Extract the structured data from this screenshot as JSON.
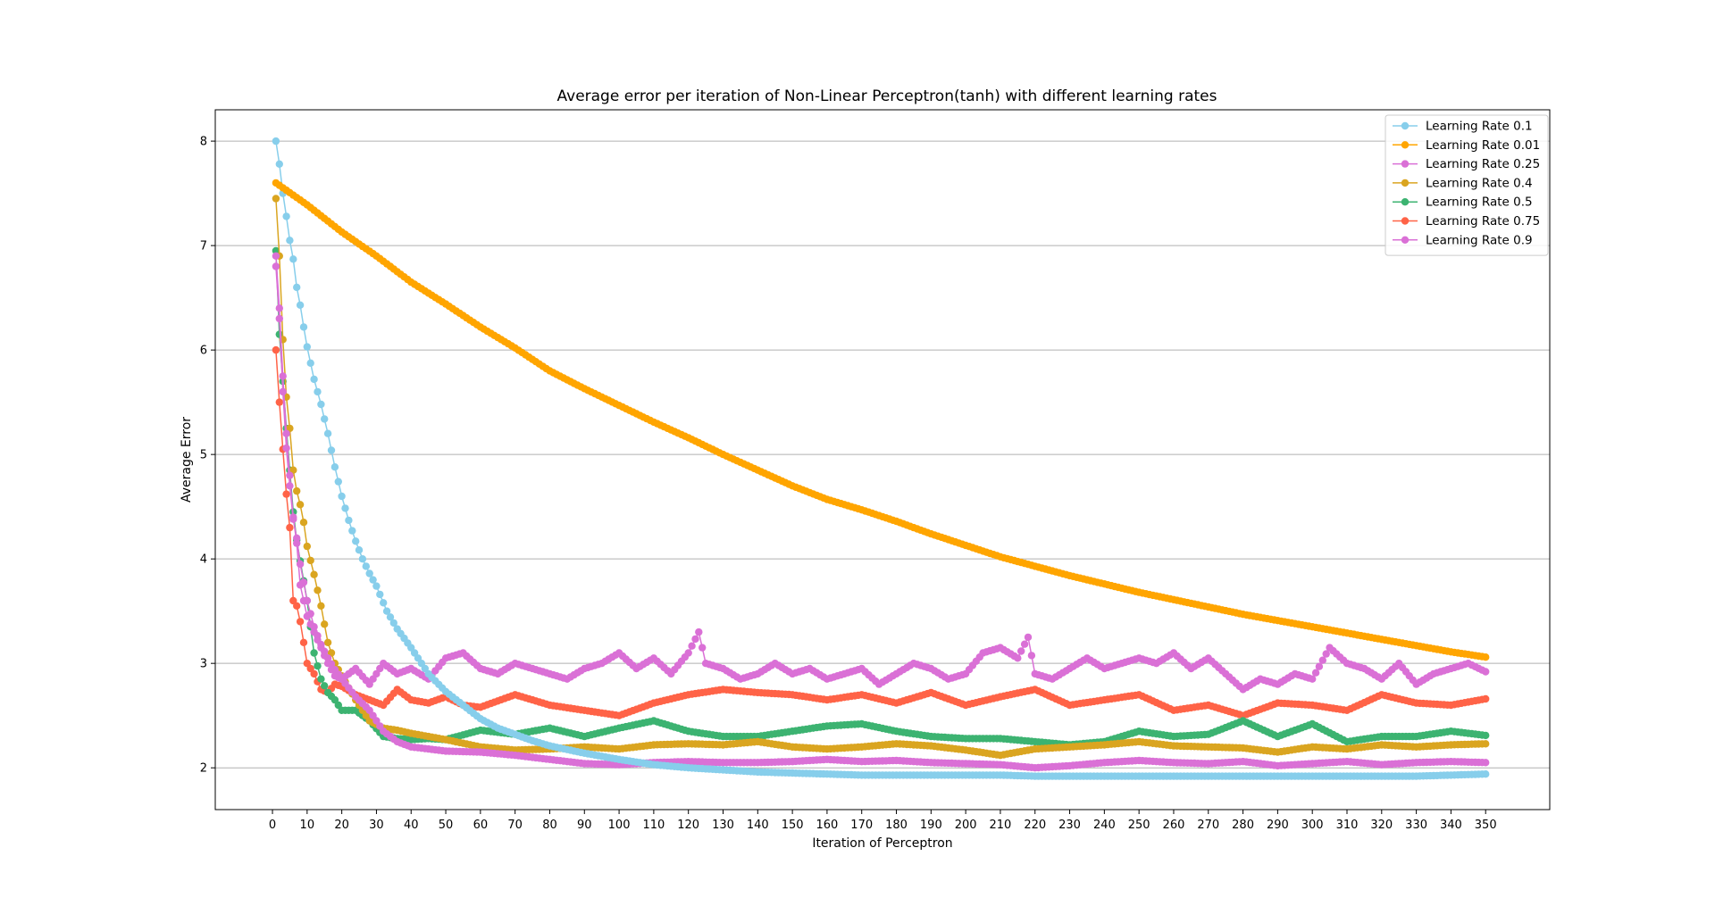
{
  "chart_data": {
    "type": "line",
    "title": "Average error per iteration of Non-Linear Perceptron(tanh) with different learning rates",
    "xlabel": "Iteration of Perceptron",
    "ylabel": "Average Error",
    "xlim": [
      -16.5,
      368.5
    ],
    "ylim": [
      1.6,
      8.3
    ],
    "x_ticks": [
      0,
      10,
      20,
      30,
      40,
      50,
      60,
      70,
      80,
      90,
      100,
      110,
      120,
      130,
      140,
      150,
      160,
      170,
      180,
      190,
      200,
      210,
      220,
      230,
      240,
      250,
      260,
      270,
      280,
      290,
      300,
      310,
      320,
      330,
      340,
      350
    ],
    "y_ticks": [
      2,
      3,
      4,
      5,
      6,
      7,
      8
    ],
    "grid": "horizontal",
    "legend_position": "top-right",
    "x_start": 1,
    "x_end": 350,
    "series": [
      {
        "name": "Learning Rate 0.1",
        "color": "#87CEEB",
        "x": [
          1,
          2,
          3,
          4,
          5,
          6,
          7,
          8,
          9,
          10,
          12,
          14,
          16,
          18,
          20,
          22,
          24,
          26,
          28,
          30,
          33,
          36,
          40,
          45,
          50,
          55,
          60,
          65,
          70,
          75,
          80,
          90,
          100,
          110,
          120,
          130,
          140,
          150,
          160,
          170,
          180,
          190,
          200,
          210,
          220,
          230,
          240,
          250,
          260,
          270,
          280,
          290,
          300,
          310,
          320,
          330,
          340,
          350
        ],
        "values": [
          8.0,
          7.78,
          7.5,
          7.28,
          7.05,
          6.87,
          6.6,
          6.43,
          6.22,
          6.03,
          5.72,
          5.48,
          5.2,
          4.88,
          4.6,
          4.37,
          4.17,
          4.0,
          3.86,
          3.74,
          3.5,
          3.33,
          3.15,
          2.9,
          2.73,
          2.6,
          2.47,
          2.38,
          2.32,
          2.26,
          2.21,
          2.14,
          2.08,
          2.03,
          2.0,
          1.98,
          1.96,
          1.95,
          1.94,
          1.93,
          1.93,
          1.93,
          1.93,
          1.93,
          1.92,
          1.92,
          1.92,
          1.92,
          1.92,
          1.92,
          1.92,
          1.92,
          1.92,
          1.92,
          1.92,
          1.92,
          1.93,
          1.94
        ]
      },
      {
        "name": "Learning Rate 0.01",
        "color": "#FFA500",
        "x": [
          1,
          10,
          20,
          30,
          40,
          50,
          60,
          70,
          80,
          90,
          100,
          110,
          120,
          130,
          140,
          150,
          160,
          170,
          180,
          190,
          200,
          210,
          220,
          230,
          240,
          250,
          260,
          270,
          280,
          290,
          300,
          310,
          320,
          330,
          340,
          350
        ],
        "values": [
          7.6,
          7.39,
          7.13,
          6.9,
          6.65,
          6.44,
          6.22,
          6.02,
          5.8,
          5.63,
          5.47,
          5.31,
          5.16,
          5.0,
          4.85,
          4.7,
          4.57,
          4.47,
          4.36,
          4.24,
          4.13,
          4.02,
          3.93,
          3.84,
          3.76,
          3.68,
          3.61,
          3.54,
          3.47,
          3.41,
          3.35,
          3.29,
          3.23,
          3.17,
          3.11,
          3.06
        ]
      },
      {
        "name": "Learning Rate 0.25",
        "color": "#DA70D6",
        "x": [
          1,
          2,
          3,
          4,
          5,
          6,
          7,
          8,
          10,
          12,
          14,
          16,
          18,
          20,
          24,
          28,
          32,
          36,
          40,
          45,
          50,
          60,
          70,
          80,
          90,
          100,
          110,
          120,
          130,
          140,
          150,
          160,
          170,
          180,
          190,
          200,
          210,
          220,
          230,
          240,
          250,
          260,
          270,
          280,
          290,
          300,
          310,
          320,
          330,
          340,
          350
        ],
        "values": [
          6.8,
          6.3,
          5.6,
          5.06,
          4.7,
          4.38,
          4.2,
          3.95,
          3.6,
          3.35,
          3.18,
          3.05,
          2.94,
          2.85,
          2.68,
          2.55,
          2.35,
          2.25,
          2.2,
          2.18,
          2.16,
          2.15,
          2.12,
          2.08,
          2.04,
          2.03,
          2.05,
          2.06,
          2.05,
          2.05,
          2.06,
          2.08,
          2.06,
          2.07,
          2.05,
          2.04,
          2.03,
          2.0,
          2.02,
          2.05,
          2.07,
          2.05,
          2.04,
          2.06,
          2.02,
          2.04,
          2.06,
          2.03,
          2.05,
          2.06,
          2.05
        ]
      },
      {
        "name": "Learning Rate 0.4",
        "color": "#DAA520",
        "x": [
          1,
          2,
          3,
          4,
          5,
          6,
          7,
          8,
          9,
          10,
          12,
          14,
          16,
          18,
          20,
          24,
          28,
          32,
          36,
          40,
          45,
          50,
          60,
          70,
          80,
          90,
          100,
          110,
          120,
          130,
          140,
          150,
          160,
          170,
          180,
          190,
          200,
          210,
          220,
          230,
          240,
          250,
          260,
          270,
          280,
          290,
          300,
          310,
          320,
          330,
          340,
          350
        ],
        "values": [
          7.45,
          6.9,
          6.1,
          5.55,
          5.25,
          4.85,
          4.65,
          4.52,
          4.35,
          4.12,
          3.85,
          3.55,
          3.2,
          3.0,
          2.88,
          2.65,
          2.45,
          2.38,
          2.36,
          2.33,
          2.3,
          2.27,
          2.2,
          2.17,
          2.18,
          2.2,
          2.18,
          2.22,
          2.23,
          2.22,
          2.25,
          2.2,
          2.18,
          2.2,
          2.23,
          2.21,
          2.17,
          2.12,
          2.18,
          2.2,
          2.22,
          2.25,
          2.21,
          2.2,
          2.19,
          2.15,
          2.2,
          2.18,
          2.22,
          2.2,
          2.22,
          2.23
        ]
      },
      {
        "name": "Learning Rate 0.5",
        "color": "#3CB371",
        "x": [
          1,
          2,
          3,
          4,
          5,
          6,
          7,
          8,
          10,
          12,
          14,
          16,
          18,
          20,
          24,
          28,
          32,
          36,
          40,
          45,
          50,
          60,
          70,
          80,
          90,
          100,
          110,
          120,
          130,
          140,
          150,
          160,
          170,
          180,
          190,
          200,
          210,
          220,
          230,
          240,
          250,
          260,
          270,
          280,
          290,
          300,
          310,
          320,
          330,
          340,
          350
        ],
        "values": [
          6.95,
          6.15,
          5.7,
          5.25,
          4.85,
          4.45,
          4.18,
          3.98,
          3.6,
          3.1,
          2.85,
          2.72,
          2.65,
          2.55,
          2.55,
          2.45,
          2.3,
          2.28,
          2.27,
          2.28,
          2.27,
          2.36,
          2.32,
          2.38,
          2.3,
          2.38,
          2.45,
          2.35,
          2.3,
          2.3,
          2.35,
          2.4,
          2.42,
          2.35,
          2.3,
          2.28,
          2.28,
          2.25,
          2.22,
          2.25,
          2.35,
          2.3,
          2.32,
          2.45,
          2.3,
          2.42,
          2.25,
          2.3,
          2.3,
          2.35,
          2.31
        ]
      },
      {
        "name": "Learning Rate 0.75",
        "color": "#FF6347",
        "x": [
          1,
          2,
          3,
          4,
          5,
          6,
          7,
          8,
          10,
          12,
          14,
          16,
          18,
          20,
          24,
          28,
          32,
          36,
          40,
          45,
          50,
          55,
          60,
          70,
          80,
          90,
          100,
          110,
          120,
          130,
          140,
          150,
          160,
          170,
          180,
          190,
          200,
          210,
          220,
          230,
          240,
          250,
          260,
          270,
          280,
          290,
          300,
          310,
          320,
          330,
          340,
          350
        ],
        "values": [
          6.0,
          5.5,
          5.05,
          4.62,
          4.3,
          3.6,
          3.55,
          3.4,
          3.0,
          2.9,
          2.75,
          2.72,
          2.8,
          2.78,
          2.7,
          2.65,
          2.6,
          2.75,
          2.65,
          2.62,
          2.68,
          2.6,
          2.58,
          2.7,
          2.6,
          2.55,
          2.5,
          2.62,
          2.7,
          2.75,
          2.72,
          2.7,
          2.65,
          2.7,
          2.62,
          2.72,
          2.6,
          2.68,
          2.75,
          2.6,
          2.65,
          2.7,
          2.55,
          2.6,
          2.5,
          2.62,
          2.6,
          2.55,
          2.7,
          2.62,
          2.6,
          2.66
        ]
      },
      {
        "name": "Learning Rate 0.9",
        "color": "#DA70D6",
        "x": [
          1,
          2,
          3,
          4,
          5,
          6,
          7,
          8,
          10,
          12,
          14,
          16,
          18,
          20,
          24,
          28,
          32,
          36,
          40,
          45,
          50,
          55,
          60,
          65,
          70,
          75,
          80,
          85,
          90,
          95,
          100,
          105,
          110,
          115,
          120,
          123,
          125,
          130,
          135,
          140,
          145,
          150,
          155,
          160,
          165,
          170,
          175,
          180,
          185,
          190,
          195,
          200,
          205,
          210,
          215,
          218,
          220,
          225,
          230,
          235,
          240,
          245,
          250,
          255,
          260,
          265,
          270,
          275,
          280,
          285,
          290,
          295,
          300,
          305,
          310,
          315,
          320,
          325,
          330,
          335,
          340,
          345,
          350
        ],
        "values": [
          6.9,
          6.4,
          5.75,
          5.2,
          4.8,
          4.4,
          4.15,
          3.75,
          3.45,
          3.3,
          3.15,
          3.0,
          2.88,
          2.85,
          2.95,
          2.8,
          3.0,
          2.9,
          2.95,
          2.85,
          3.05,
          3.1,
          2.95,
          2.9,
          3.0,
          2.95,
          2.9,
          2.85,
          2.95,
          3.0,
          3.1,
          2.95,
          3.05,
          2.9,
          3.1,
          3.3,
          3.0,
          2.95,
          2.85,
          2.9,
          3.0,
          2.9,
          2.95,
          2.85,
          2.9,
          2.95,
          2.8,
          2.9,
          3.0,
          2.95,
          2.85,
          2.9,
          3.1,
          3.15,
          3.05,
          3.25,
          2.9,
          2.85,
          2.95,
          3.05,
          2.95,
          3.0,
          3.05,
          3.0,
          3.1,
          2.95,
          3.05,
          2.9,
          2.75,
          2.85,
          2.8,
          2.9,
          2.85,
          3.15,
          3.0,
          2.95,
          2.85,
          3.0,
          2.8,
          2.9,
          2.95,
          3.0,
          2.92
        ]
      }
    ]
  }
}
